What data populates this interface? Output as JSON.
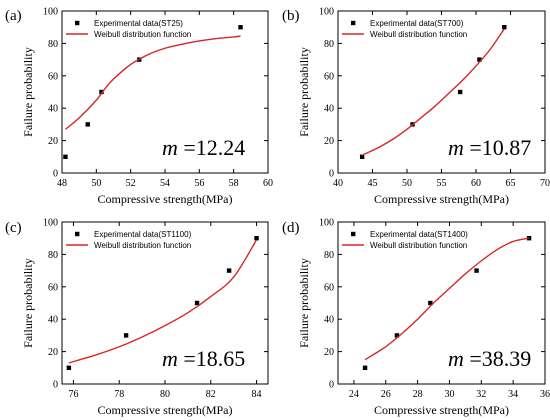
{
  "chart_data": [
    {
      "type": "scatter",
      "panel_label": "(a)",
      "xlabel": "Compressive strength(MPa)",
      "ylabel": "Failure probability",
      "xlim": [
        48,
        60
      ],
      "ylim": [
        0,
        100
      ],
      "xticks": [
        "48",
        "50",
        "52",
        "54",
        "56",
        "58",
        "60"
      ],
      "yticks": [
        "0",
        "20",
        "40",
        "60",
        "80",
        "100"
      ],
      "legend_position": "top-left",
      "series": [
        {
          "name": "Experimental data(ST25)",
          "kind": "points",
          "color": "#000000",
          "x": [
            48.2,
            49.5,
            50.3,
            52.5,
            58.4
          ],
          "y": [
            10,
            30,
            50,
            70,
            90
          ]
        },
        {
          "name": "Weibull distribution function",
          "kind": "line",
          "color": "#d62728",
          "x": [
            48.2,
            49,
            50,
            50.5,
            51,
            52,
            53,
            54,
            55,
            56,
            57,
            58,
            58.4
          ],
          "y": [
            27,
            34,
            45,
            52,
            58,
            67,
            73,
            77,
            79.5,
            81.5,
            83,
            84,
            84.5
          ]
        }
      ],
      "annotation": {
        "symbol": "m",
        "value": " =12.24"
      }
    },
    {
      "type": "scatter",
      "panel_label": "(b)",
      "xlabel": "Compressive strength(MPa)",
      "ylabel": "Failure probability",
      "xlim": [
        40,
        70
      ],
      "ylim": [
        0,
        100
      ],
      "xticks": [
        "40",
        "45",
        "50",
        "55",
        "60",
        "65",
        "70"
      ],
      "yticks": [
        "0",
        "20",
        "40",
        "60",
        "80",
        "100"
      ],
      "legend_position": "top-left",
      "series": [
        {
          "name": "Experimental data(ST700)",
          "kind": "points",
          "color": "#000000",
          "x": [
            43.5,
            50.8,
            57.7,
            60.5,
            64.1
          ],
          "y": [
            10,
            30,
            50,
            70,
            90
          ]
        },
        {
          "name": "Weibull distribution function",
          "kind": "line",
          "color": "#d62728",
          "x": [
            43.5,
            46,
            48,
            50,
            52,
            54,
            56,
            58,
            60,
            62,
            64.1
          ],
          "y": [
            11,
            16,
            21,
            27,
            34,
            41,
            49,
            57,
            66,
            76,
            89
          ]
        }
      ],
      "annotation": {
        "symbol": "m",
        "value": " =10.87"
      }
    },
    {
      "type": "scatter",
      "panel_label": "(c)",
      "xlabel": "Compressive strength(MPa)",
      "ylabel": "Failure probability",
      "xlim": [
        75.5,
        84.5
      ],
      "ylim": [
        0,
        100
      ],
      "xticks": [
        "76",
        "78",
        "80",
        "82",
        "84"
      ],
      "yticks": [
        "0",
        "20",
        "40",
        "60",
        "80",
        "100"
      ],
      "legend_position": "top-left",
      "series": [
        {
          "name": "Experimental data(ST1100)",
          "kind": "points",
          "color": "#000000",
          "x": [
            75.8,
            78.3,
            81.4,
            82.8,
            84.0
          ],
          "y": [
            10,
            30,
            50,
            70,
            90
          ]
        },
        {
          "name": "Weibull distribution function",
          "kind": "line",
          "color": "#d62728",
          "x": [
            75.8,
            77,
            78,
            79,
            80,
            81,
            82,
            83,
            84
          ],
          "y": [
            13,
            18,
            23,
            29,
            36,
            44,
            54,
            66,
            89
          ]
        }
      ],
      "annotation": {
        "symbol": "m",
        "value": " =18.65"
      }
    },
    {
      "type": "scatter",
      "panel_label": "(d)",
      "xlabel": "Compressive strength(MPa)",
      "ylabel": "Failure probability",
      "xlim": [
        23,
        36
      ],
      "ylim": [
        0,
        100
      ],
      "xticks": [
        "24",
        "26",
        "28",
        "30",
        "32",
        "34",
        "36"
      ],
      "yticks": [
        "0",
        "20",
        "40",
        "60",
        "80",
        "100"
      ],
      "legend_position": "top-left",
      "series": [
        {
          "name": "Experimental data(ST1400)",
          "kind": "points",
          "color": "#000000",
          "x": [
            24.7,
            26.7,
            28.8,
            31.7,
            35.0
          ],
          "y": [
            10,
            30,
            50,
            70,
            90
          ]
        },
        {
          "name": "Weibull distribution function",
          "kind": "line",
          "color": "#d62728",
          "x": [
            24.7,
            26,
            27,
            28,
            29,
            30,
            31,
            32,
            33,
            34,
            35
          ],
          "y": [
            15,
            23,
            31,
            40,
            50,
            59,
            68,
            76,
            83,
            88,
            90
          ]
        }
      ],
      "annotation": {
        "symbol": "m",
        "value": " =38.39"
      }
    }
  ]
}
